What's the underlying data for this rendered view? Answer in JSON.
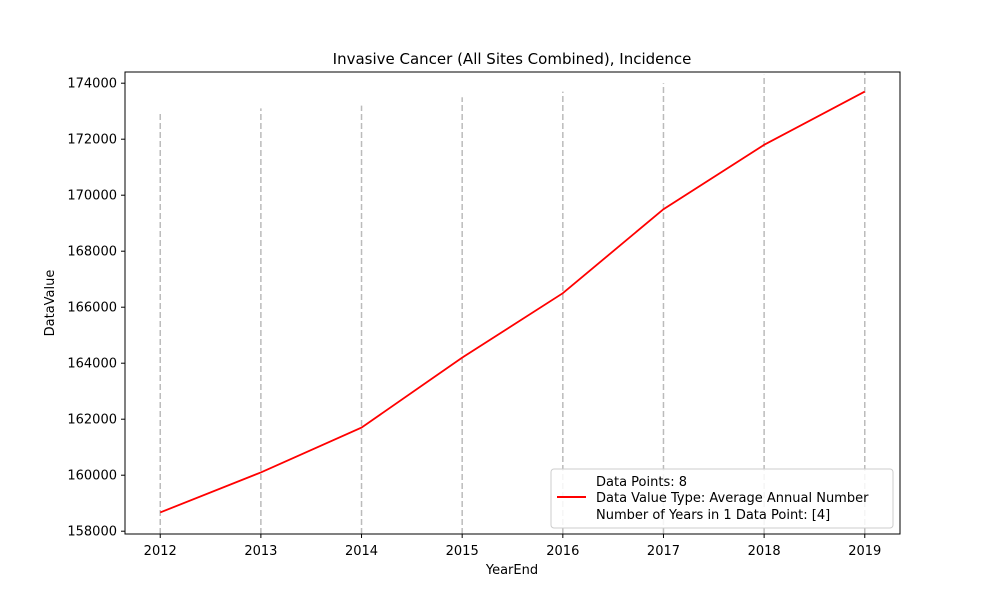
{
  "chart_data": {
    "type": "line",
    "title": "Invasive Cancer (All Sites Combined), Incidence",
    "xlabel": "YearEnd",
    "ylabel": "DataValue",
    "x": [
      2012,
      2013,
      2014,
      2015,
      2016,
      2017,
      2018,
      2019
    ],
    "series": [
      {
        "name": "Data Value Type: Average Annual Number",
        "color": "#ff0000",
        "values": [
          158670,
          160100,
          161700,
          164200,
          166500,
          169500,
          171800,
          173700
        ]
      }
    ],
    "vlines": [
      {
        "x": 2012,
        "y_top": 173000
      },
      {
        "x": 2013,
        "y_top": 173100
      },
      {
        "x": 2014,
        "y_top": 173200
      },
      {
        "x": 2015,
        "y_top": 173500
      },
      {
        "x": 2016,
        "y_top": 173700
      },
      {
        "x": 2017,
        "y_top": 174000
      },
      {
        "x": 2018,
        "y_top": 174300
      },
      {
        "x": 2019,
        "y_top": 174400
      }
    ],
    "vline_color": "#bbbbbb",
    "x_ticks": [
      "2012",
      "2013",
      "2014",
      "2015",
      "2016",
      "2017",
      "2018",
      "2019"
    ],
    "y_ticks": [
      "158000",
      "160000",
      "162000",
      "164000",
      "166000",
      "168000",
      "170000",
      "172000",
      "174000"
    ],
    "xlim": [
      2011.65,
      2019.35
    ],
    "ylim": [
      157900,
      174400
    ],
    "grid": false,
    "legend": {
      "placement": "lower-right",
      "lines": [
        "Data Points: 8",
        "Data Value Type: Average Annual Number",
        "Number of Years in 1 Data Point: [4]"
      ]
    }
  }
}
